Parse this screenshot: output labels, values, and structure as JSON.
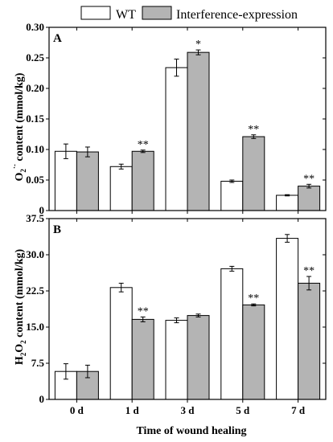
{
  "legend": {
    "items": [
      {
        "label": "WT",
        "color": "#ffffff"
      },
      {
        "label": "Interference-expression",
        "color": "#b4b4b4"
      }
    ],
    "placement": "top"
  },
  "xlabel": "Time of wound healing",
  "chart_data": [
    {
      "type": "bar",
      "panel_label": "A",
      "ylabel_main": "O",
      "ylabel_sub": "2",
      "ylabel_sup": "·-",
      "ylabel_rest": " content (mmol/kg)",
      "categories": [
        "0 d",
        "1 d",
        "3 d",
        "5 d",
        "7 d"
      ],
      "ylim": [
        0,
        0.3
      ],
      "yticks": [
        "0",
        "0.05",
        "0.10",
        "0.15",
        "0.20",
        "0.25",
        "0.30"
      ],
      "yticks_values": [
        0,
        0.05,
        0.1,
        0.15,
        0.2,
        0.25,
        0.3
      ],
      "series": [
        {
          "name": "WT",
          "values": [
            0.097,
            0.072,
            0.234,
            0.048,
            0.025
          ],
          "errors": [
            0.012,
            0.004,
            0.014,
            0.002,
            0.001
          ]
        },
        {
          "name": "Interference-expression",
          "values": [
            0.096,
            0.097,
            0.259,
            0.121,
            0.04
          ],
          "errors": [
            0.008,
            0.002,
            0.004,
            0.003,
            0.003
          ]
        }
      ],
      "annotations": [
        "",
        "**",
        "*",
        "**",
        "**"
      ]
    },
    {
      "type": "bar",
      "panel_label": "B",
      "ylabel_main": "H",
      "ylabel_sub1": "2",
      "ylabel_mid": "O",
      "ylabel_sub2": "2",
      "ylabel_rest": " content (mmol/kg)",
      "categories": [
        "0 d",
        "1 d",
        "3 d",
        "5 d",
        "7 d"
      ],
      "ylim": [
        0,
        37.5
      ],
      "yticks": [
        "0",
        "7.5",
        "15.0",
        "22.5",
        "30.0",
        "37.5"
      ],
      "yticks_values": [
        0,
        7.5,
        15,
        22.5,
        30,
        37.5
      ],
      "series": [
        {
          "name": "WT",
          "values": [
            5.8,
            23.2,
            16.4,
            27.1,
            33.4
          ],
          "errors": [
            1.6,
            0.9,
            0.5,
            0.5,
            0.8
          ]
        },
        {
          "name": "Interference-expression",
          "values": [
            5.8,
            16.6,
            17.4,
            19.6,
            24.1
          ],
          "errors": [
            1.3,
            0.5,
            0.3,
            0.2,
            1.4
          ]
        }
      ],
      "annotations": [
        "",
        "**",
        "",
        "**",
        "**"
      ]
    }
  ]
}
